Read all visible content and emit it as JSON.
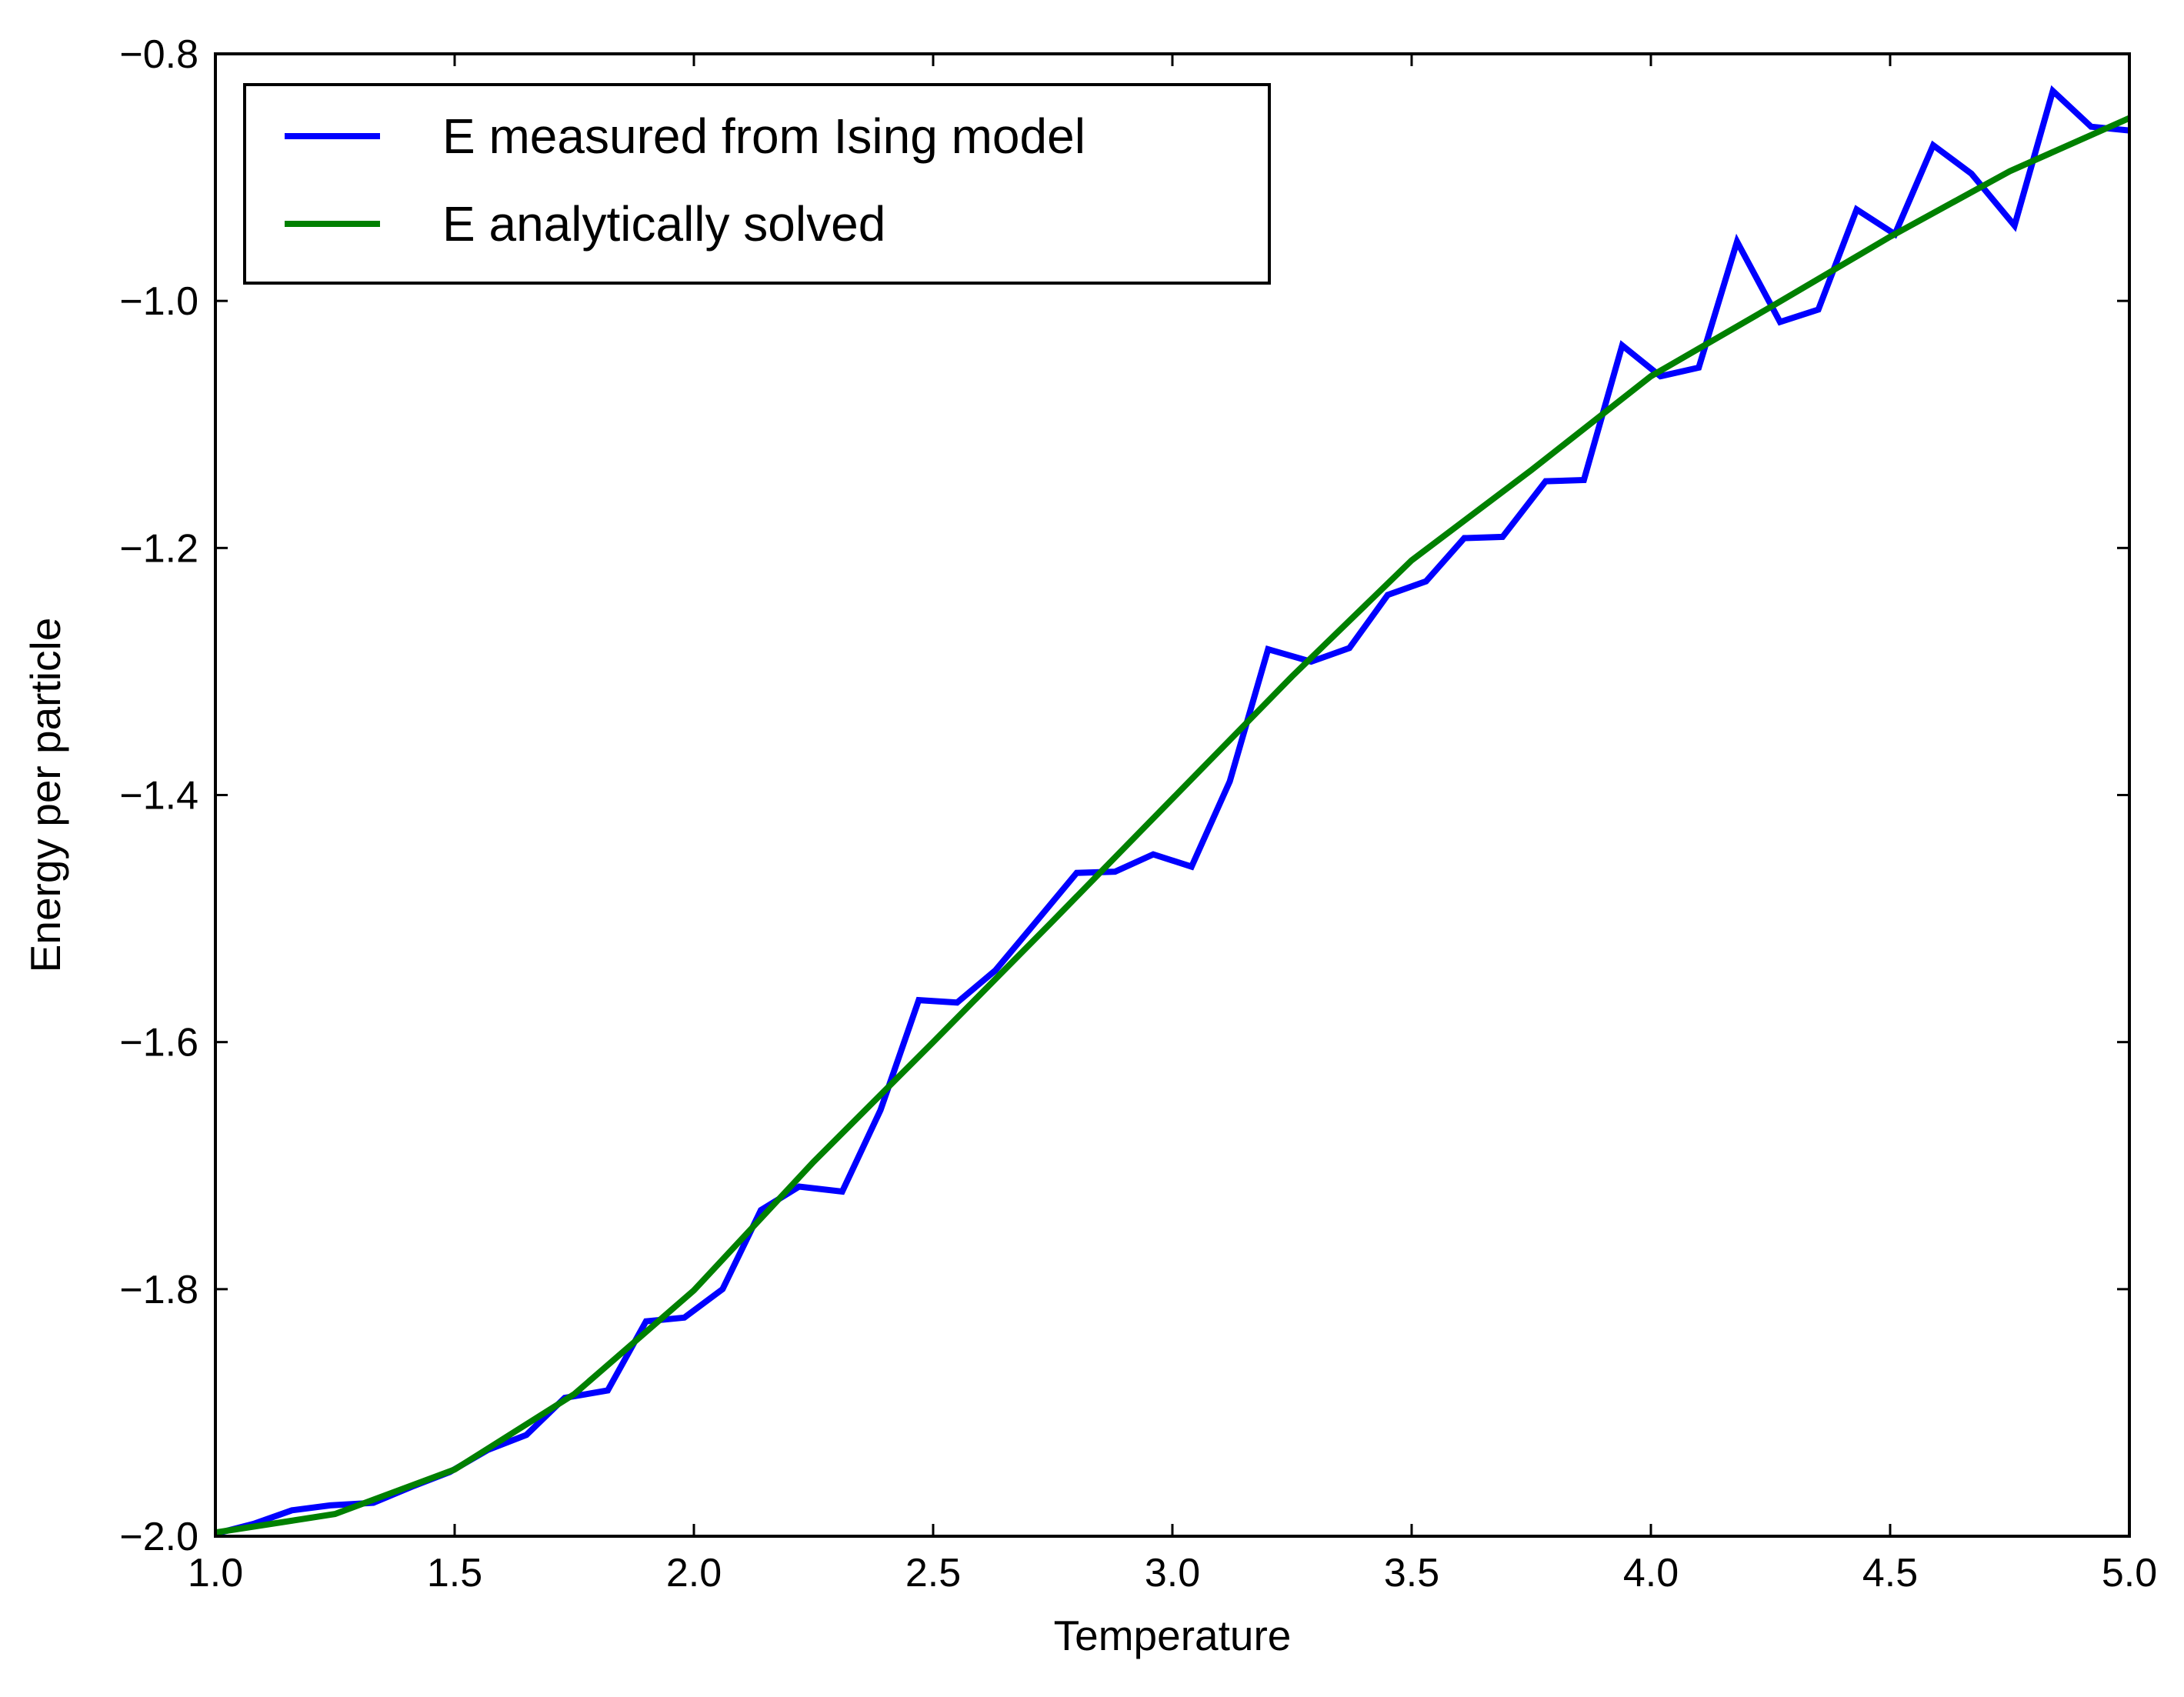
{
  "chart_data": {
    "type": "line",
    "title": "",
    "xlabel": "Temperature",
    "ylabel": "Energy per particle",
    "xlim": [
      1.0,
      5.0
    ],
    "ylim": [
      -2.0,
      -0.8
    ],
    "xticks": [
      1.0,
      1.5,
      2.0,
      2.5,
      3.0,
      3.5,
      4.0,
      4.5,
      5.0
    ],
    "xtick_labels": [
      "1.0",
      "1.5",
      "2.0",
      "2.5",
      "3.0",
      "3.5",
      "4.0",
      "4.5",
      "5.0"
    ],
    "yticks": [
      -2.0,
      -1.8,
      -1.6,
      -1.4,
      -1.2,
      -1.0,
      -0.8
    ],
    "ytick_labels": [
      "−2.0",
      "−1.8",
      "−1.6",
      "−1.4",
      "−1.2",
      "−1.0",
      "−0.8"
    ],
    "grid": false,
    "legend_position": "top-left",
    "series": [
      {
        "name": "E measured from Ising model",
        "color": "#0000ff",
        "x": [
          1.0,
          1.08,
          1.16,
          1.24,
          1.33,
          1.41,
          1.49,
          1.57,
          1.65,
          1.73,
          1.82,
          1.9,
          1.98,
          2.06,
          2.14,
          2.22,
          2.31,
          2.39,
          2.47,
          2.55,
          2.63,
          2.71,
          2.8,
          2.88,
          2.96,
          3.04,
          3.12,
          3.2,
          3.29,
          3.37,
          3.45,
          3.53,
          3.61,
          3.69,
          3.78,
          3.86,
          3.94,
          4.02,
          4.1,
          4.18,
          4.27,
          4.35,
          4.43,
          4.51,
          4.59,
          4.67,
          4.76,
          4.84,
          4.92,
          5.0
        ],
        "y": [
          -1.998,
          -1.99,
          -1.979,
          -1.975,
          -1.973,
          -1.96,
          -1.948,
          -1.93,
          -1.918,
          -1.888,
          -1.882,
          -1.826,
          -1.823,
          -1.8,
          -1.736,
          -1.717,
          -1.721,
          -1.655,
          -1.566,
          -1.568,
          -1.542,
          -1.505,
          -1.463,
          -1.462,
          -1.448,
          -1.458,
          -1.389,
          -1.282,
          -1.292,
          -1.281,
          -1.238,
          -1.227,
          -1.192,
          -1.191,
          -1.146,
          -1.145,
          -1.036,
          -1.061,
          -1.054,
          -0.952,
          -1.017,
          -1.007,
          -0.926,
          -0.946,
          -0.874,
          -0.897,
          -0.939,
          -0.83,
          -0.859,
          -0.862
        ]
      },
      {
        "name": "E analytically solved",
        "color": "#008000",
        "x": [
          1.0,
          1.25,
          1.5,
          1.75,
          2.0,
          2.25,
          2.5,
          2.75,
          3.0,
          3.25,
          3.5,
          3.75,
          4.0,
          4.25,
          4.5,
          4.75,
          5.0
        ],
        "y": [
          -1.997,
          -1.982,
          -1.946,
          -1.885,
          -1.801,
          -1.697,
          -1.6,
          -1.502,
          -1.403,
          -1.304,
          -1.21,
          -1.137,
          -1.061,
          -1.005,
          -0.948,
          -0.895,
          -0.852
        ]
      }
    ]
  }
}
